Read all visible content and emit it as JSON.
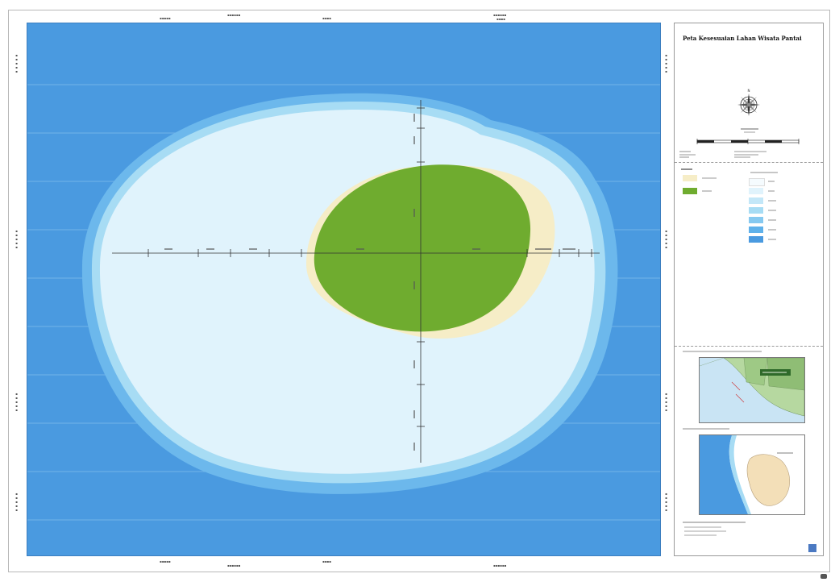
{
  "map": {
    "title": "Peta Kesesuaian Lahan Wisata Pantai",
    "colors": {
      "ocean": "#4a9ae0",
      "deep_ring": "#6cb8ec",
      "mid_ring": "#a7dcf4",
      "shallow": "#dff2fb",
      "beach": "#f6edc7",
      "land": "#6fac2f"
    },
    "icons": [
      "compass-rose-icon",
      "scale-bar-icon",
      "province-inset-map",
      "island-inset-map"
    ]
  }
}
